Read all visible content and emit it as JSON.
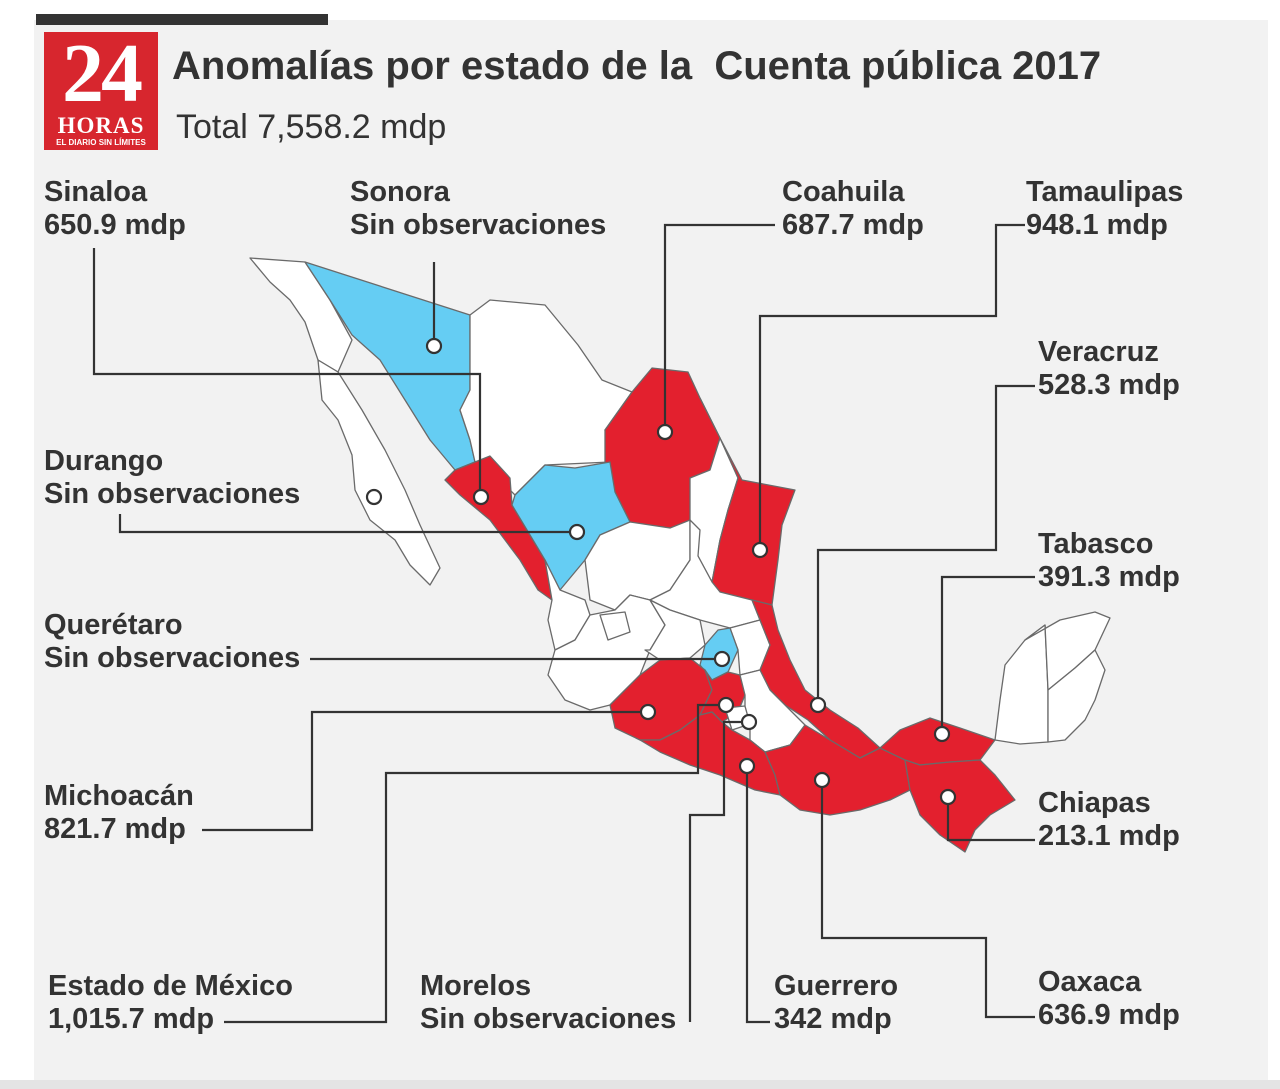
{
  "header": {
    "title": "Anomalías por estado de la  Cuenta pública 2017",
    "subtitle": "Total 7,558.2 mdp"
  },
  "logo": {
    "number": "24",
    "word": "HORAS",
    "tagline": "EL DIARIO SIN LÍMITES"
  },
  "colors": {
    "with_anomalies": "#e3202e",
    "without_observations": "#65cdf3",
    "not_highlighted": "#ffffff",
    "brand": "#d7262e"
  },
  "states": {
    "sinaloa": {
      "name": "Sinaloa",
      "value": "650.9 mdp",
      "status": "with_anomalies"
    },
    "sonora": {
      "name": "Sonora",
      "value": "Sin observaciones",
      "status": "without_observations"
    },
    "coahuila": {
      "name": "Coahuila",
      "value": "687.7 mdp",
      "status": "with_anomalies"
    },
    "tamaulipas": {
      "name": "Tamaulipas",
      "value": "948.1 mdp",
      "status": "with_anomalies"
    },
    "veracruz": {
      "name": "Veracruz",
      "value": "528.3 mdp",
      "status": "with_anomalies"
    },
    "durango": {
      "name": "Durango",
      "value": "Sin observaciones",
      "status": "without_observations"
    },
    "tabasco": {
      "name": "Tabasco",
      "value": "391.3 mdp",
      "status": "with_anomalies"
    },
    "queretaro": {
      "name": "Querétaro",
      "value": "Sin observaciones",
      "status": "without_observations"
    },
    "michoacan": {
      "name": "Michoacán",
      "value": "821.7 mdp",
      "status": "with_anomalies"
    },
    "chiapas": {
      "name": "Chiapas",
      "value": "213.1 mdp",
      "status": "with_anomalies"
    },
    "edomex": {
      "name": "Estado de México",
      "value": "1,015.7 mdp",
      "status": "with_anomalies"
    },
    "morelos": {
      "name": "Morelos",
      "value": "Sin observaciones",
      "status": "without_observations"
    },
    "guerrero": {
      "name": "Guerrero",
      "value": "342 mdp",
      "status": "with_anomalies"
    },
    "oaxaca": {
      "name": "Oaxaca",
      "value": "636.9 mdp",
      "status": "with_anomalies"
    }
  }
}
